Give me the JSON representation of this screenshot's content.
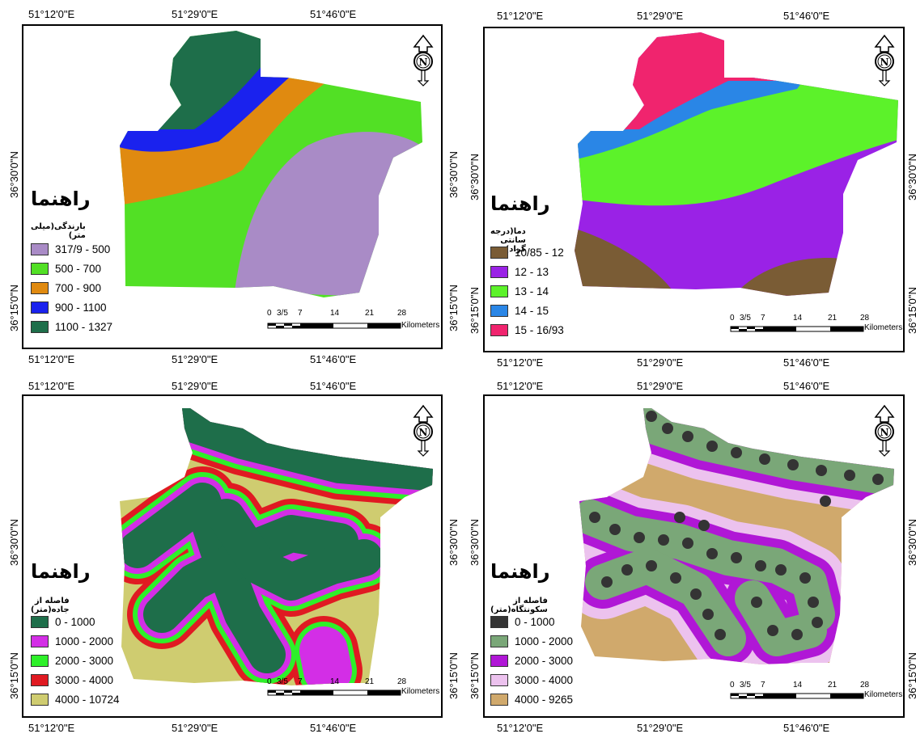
{
  "panels": [
    {
      "legend_title": "راهنما",
      "legend_subtitle": "بارندگی(میلی متر)",
      "legend": [
        {
          "label": "317/9 - 500",
          "color": "#a98bc6"
        },
        {
          "label": "500 - 700",
          "color": "#52e025"
        },
        {
          "label": "700 - 900",
          "color": "#e08a10"
        },
        {
          "label": "900 - 1100",
          "color": "#1a22ee"
        },
        {
          "label": "1100 - 1327",
          "color": "#1e6e4a"
        }
      ],
      "top_coords": [
        "51°12'0\"E",
        "51°29'0\"E",
        "51°46'0\"E"
      ],
      "bottom_coords": [
        "51°12'0\"E",
        "51°29'0\"E",
        "51°46'0\"E"
      ],
      "left_coords": [
        "36°30'0\"N",
        "36°15'0\"N"
      ],
      "right_coords": [
        "36°30'0\"N",
        "36°15'0\"N"
      ]
    },
    {
      "legend_title": "راهنما",
      "legend_subtitle": "دما(درجه سانتی گراد)",
      "legend": [
        {
          "label": "10/85 - 12",
          "color": "#7a5c35"
        },
        {
          "label": "12 - 13",
          "color": "#9a22e6"
        },
        {
          "label": "13 - 14",
          "color": "#5cf22a"
        },
        {
          "label": "14 - 15",
          "color": "#2a86e6"
        },
        {
          "label": "15 - 16/93",
          "color": "#f0246e"
        }
      ],
      "top_coords": [
        "51°12'0\"E",
        "51°29'0\"E",
        "51°46'0\"E"
      ],
      "bottom_coords": [
        "51°12'0\"E",
        "51°29'0\"E",
        "51°46'0\"E"
      ],
      "left_coords": [
        "36°30'0\"N",
        "36°15'0\"N"
      ],
      "right_coords": [
        "36°30'0\"N",
        "36°15'0\"N"
      ]
    },
    {
      "legend_title": "راهنما",
      "legend_subtitle": "فاصله از جاده(متر)",
      "legend": [
        {
          "label": "0 - 1000",
          "color": "#1e6e4a"
        },
        {
          "label": "1000 - 2000",
          "color": "#d32ee6"
        },
        {
          "label": "2000 - 3000",
          "color": "#2ef02a"
        },
        {
          "label": "3000 - 4000",
          "color": "#e01a22"
        },
        {
          "label": "4000 - 10724",
          "color": "#cfcc70"
        }
      ],
      "top_coords": [
        "51°12'0\"E",
        "51°29'0\"E",
        "51°46'0\"E"
      ],
      "bottom_coords": [
        "51°12'0\"E",
        "51°29'0\"E",
        "51°46'0\"E"
      ],
      "left_coords": [
        "36°30'0\"N",
        "36°15'0\"N"
      ],
      "right_coords": [
        "36°30'0\"N",
        "36°15'0\"N"
      ]
    },
    {
      "legend_title": "راهنما",
      "legend_subtitle": "فاصله از سکونتگاه(متر)",
      "legend": [
        {
          "label": "0 - 1000",
          "color": "#343434"
        },
        {
          "label": "1000 - 2000",
          "color": "#7aa778"
        },
        {
          "label": "2000 - 3000",
          "color": "#b017d6"
        },
        {
          "label": "3000 - 4000",
          "color": "#ecc2ee"
        },
        {
          "label": "4000 - 9265",
          "color": "#d0a96c"
        }
      ],
      "top_coords": [
        "51°12'0\"E",
        "51°29'0\"E",
        "51°46'0\"E"
      ],
      "bottom_coords": [
        "51°12'0\"E",
        "51°29'0\"E",
        "51°46'0\"E"
      ],
      "left_coords": [
        "36°30'0\"N",
        "36°15'0\"N"
      ],
      "right_coords": [
        "36°30'0\"N",
        "36°15'0\"N"
      ]
    }
  ],
  "scalebar": {
    "ticks": [
      "0",
      "3/5",
      "7",
      "14",
      "21",
      "28"
    ],
    "unit": "Kilometers"
  },
  "north_arrow": {
    "letter": "N"
  }
}
